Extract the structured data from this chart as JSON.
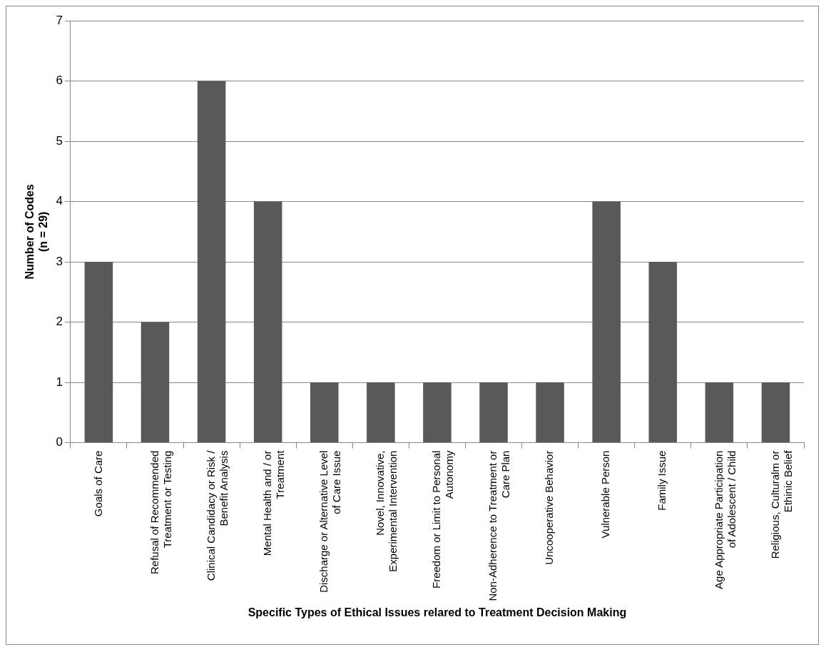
{
  "chart_data": {
    "type": "bar",
    "xlabel": "Specific Types of Ethical Issues relared to Treatment Decision Making",
    "ylabel": "Number of Codes (n = 29)",
    "categories": [
      "Goals of Care",
      "Refusal of Recommended Treatment or Testing",
      "Clinical Candidacy or Risk / Benefit Analysis",
      "Mental Health and / or Treatment",
      "Discharge or Alternative Level of Care Issue",
      "Novel, Innovative, Experimental Intervention",
      "Freedom or Limit to Personal Autonomy",
      "Non-Adherence to Treatment or Care Plan",
      "Uncooperative Behavior",
      "Vulnerable Person",
      "Family Issue",
      "Age Appropriate Participation of Adolescent / Child",
      "Religious, Culturalm or Ethinic Belief"
    ],
    "values": [
      3,
      2,
      6,
      4,
      1,
      1,
      1,
      1,
      1,
      4,
      3,
      1,
      1
    ],
    "color": "#595959",
    "ylim": [
      0,
      7
    ],
    "yticks": [
      0,
      1,
      2,
      3,
      4,
      5,
      6,
      7
    ],
    "grid": "y"
  }
}
